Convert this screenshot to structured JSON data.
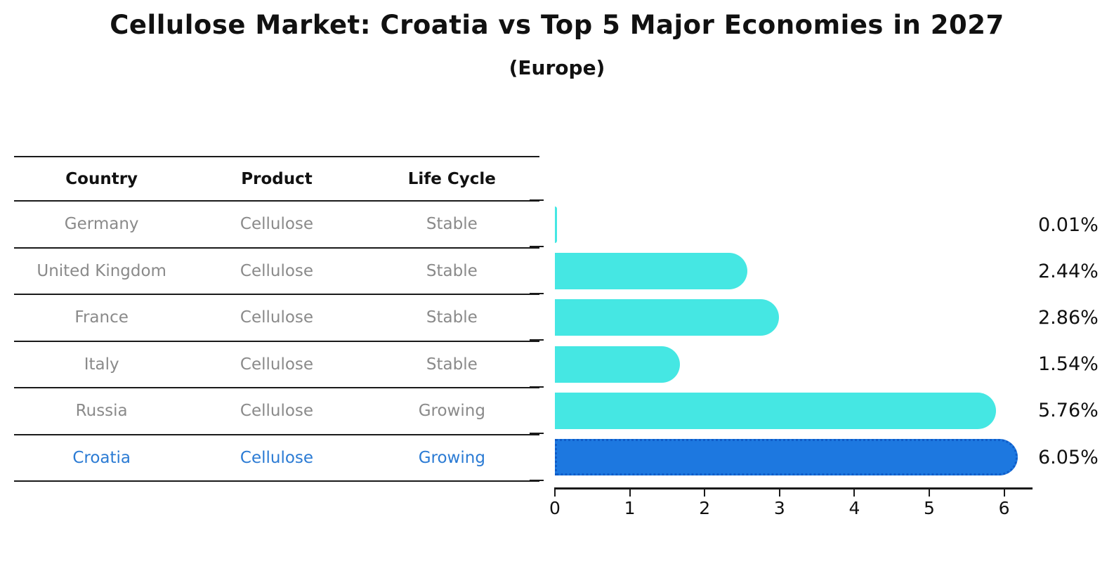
{
  "header": {
    "title": "Cellulose Market: Croatia vs Top 5 Major Economies in 2027",
    "subtitle": "(Europe)"
  },
  "table": {
    "columns": [
      "Country",
      "Product",
      "Life Cycle"
    ],
    "rows": [
      {
        "country": "Germany",
        "product": "Cellulose",
        "life_cycle": "Stable"
      },
      {
        "country": "United Kingdom",
        "product": "Cellulose",
        "life_cycle": "Stable"
      },
      {
        "country": "France",
        "product": "Cellulose",
        "life_cycle": "Stable"
      },
      {
        "country": "Italy",
        "product": "Cellulose",
        "life_cycle": "Stable"
      },
      {
        "country": "Russia",
        "product": "Cellulose",
        "life_cycle": "Growing"
      },
      {
        "country": "Croatia",
        "product": "Cellulose",
        "life_cycle": "Growing"
      }
    ],
    "highlight_text_color": "#2b7bd4"
  },
  "chart_data": {
    "type": "bar",
    "orientation": "horizontal",
    "title": "Cellulose Market: Croatia vs Top 5 Major Economies in 2027",
    "subtitle": "(Europe)",
    "categories": [
      "Germany",
      "United Kingdom",
      "France",
      "Italy",
      "Russia",
      "Croatia"
    ],
    "values": [
      0.01,
      2.44,
      2.86,
      1.54,
      5.76,
      6.05
    ],
    "value_labels": [
      "0.01%",
      "2.44%",
      "2.86%",
      "1.54%",
      "5.76%",
      "6.05%"
    ],
    "x_ticks": [
      0,
      1,
      2,
      3,
      4,
      5,
      6
    ],
    "xlim": [
      0,
      6.38
    ],
    "grid": false,
    "legend": "none",
    "highlight_index": 5,
    "bar_color": "#45e7e3",
    "highlight_color": "#1d78e0",
    "highlight_border_color": "#0f5cc8"
  }
}
